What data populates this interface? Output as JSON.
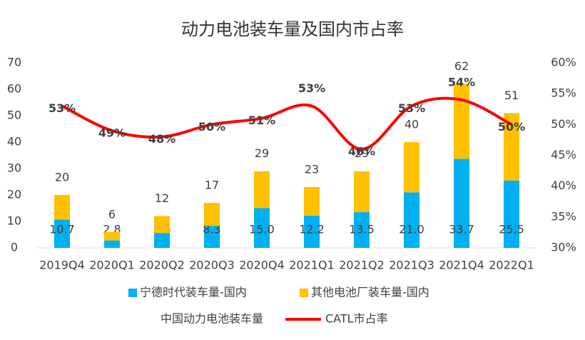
{
  "chart_data": {
    "type": "bar",
    "title": "动力电池装车量及国内市占率",
    "categories": [
      "2019Q4",
      "2020Q1",
      "2020Q2",
      "2020Q3",
      "2020Q4",
      "2021Q1",
      "2021Q2",
      "2021Q3",
      "2021Q4",
      "2022Q1"
    ],
    "series": [
      {
        "name": "宁德时代装车量-国内",
        "type": "bar",
        "color": "#00b0f0",
        "values": [
          10.7,
          2.8,
          5.6,
          8.3,
          15.0,
          12.2,
          13.5,
          21.0,
          33.7,
          25.5
        ],
        "value_labels": [
          "10.7",
          "2.8",
          "5.6",
          "8.3",
          "15.0",
          "12.2",
          "13.5",
          "21.0",
          "33.7",
          "25.5"
        ]
      },
      {
        "name": "其他电池厂装车量-国内",
        "type": "bar",
        "color": "#ffc000",
        "values": [
          9.3,
          3.2,
          6.4,
          8.7,
          14,
          10.8,
          15.5,
          19,
          28.3,
          25.5
        ]
      },
      {
        "name": "中国动力电池装车量",
        "type": "label",
        "values": [
          20,
          6,
          12,
          17,
          29,
          23,
          29,
          40,
          62,
          51
        ]
      },
      {
        "name": "CATL市占率",
        "type": "line",
        "axis": "y2",
        "color": "#ff0000",
        "values": [
          53,
          49,
          48,
          50,
          51,
          53,
          46,
          53,
          54,
          50
        ],
        "value_labels": [
          "53%",
          "49%",
          "48%",
          "50%",
          "51%",
          "53%",
          "46%",
          "53%",
          "54%",
          "50%"
        ]
      }
    ],
    "ylim": [
      0,
      70
    ],
    "yticks": [
      0,
      10,
      20,
      30,
      40,
      50,
      60,
      70
    ],
    "y2lim": [
      30,
      60
    ],
    "y2ticks": [
      {
        "value": 30,
        "label": "30%"
      },
      {
        "value": 35,
        "label": "35%"
      },
      {
        "value": 40,
        "label": "40%"
      },
      {
        "value": 45,
        "label": "45%"
      },
      {
        "value": 50,
        "label": "50%"
      },
      {
        "value": 55,
        "label": "55%"
      },
      {
        "value": 60,
        "label": "60%"
      }
    ],
    "grid": false,
    "legend": "bottom"
  }
}
